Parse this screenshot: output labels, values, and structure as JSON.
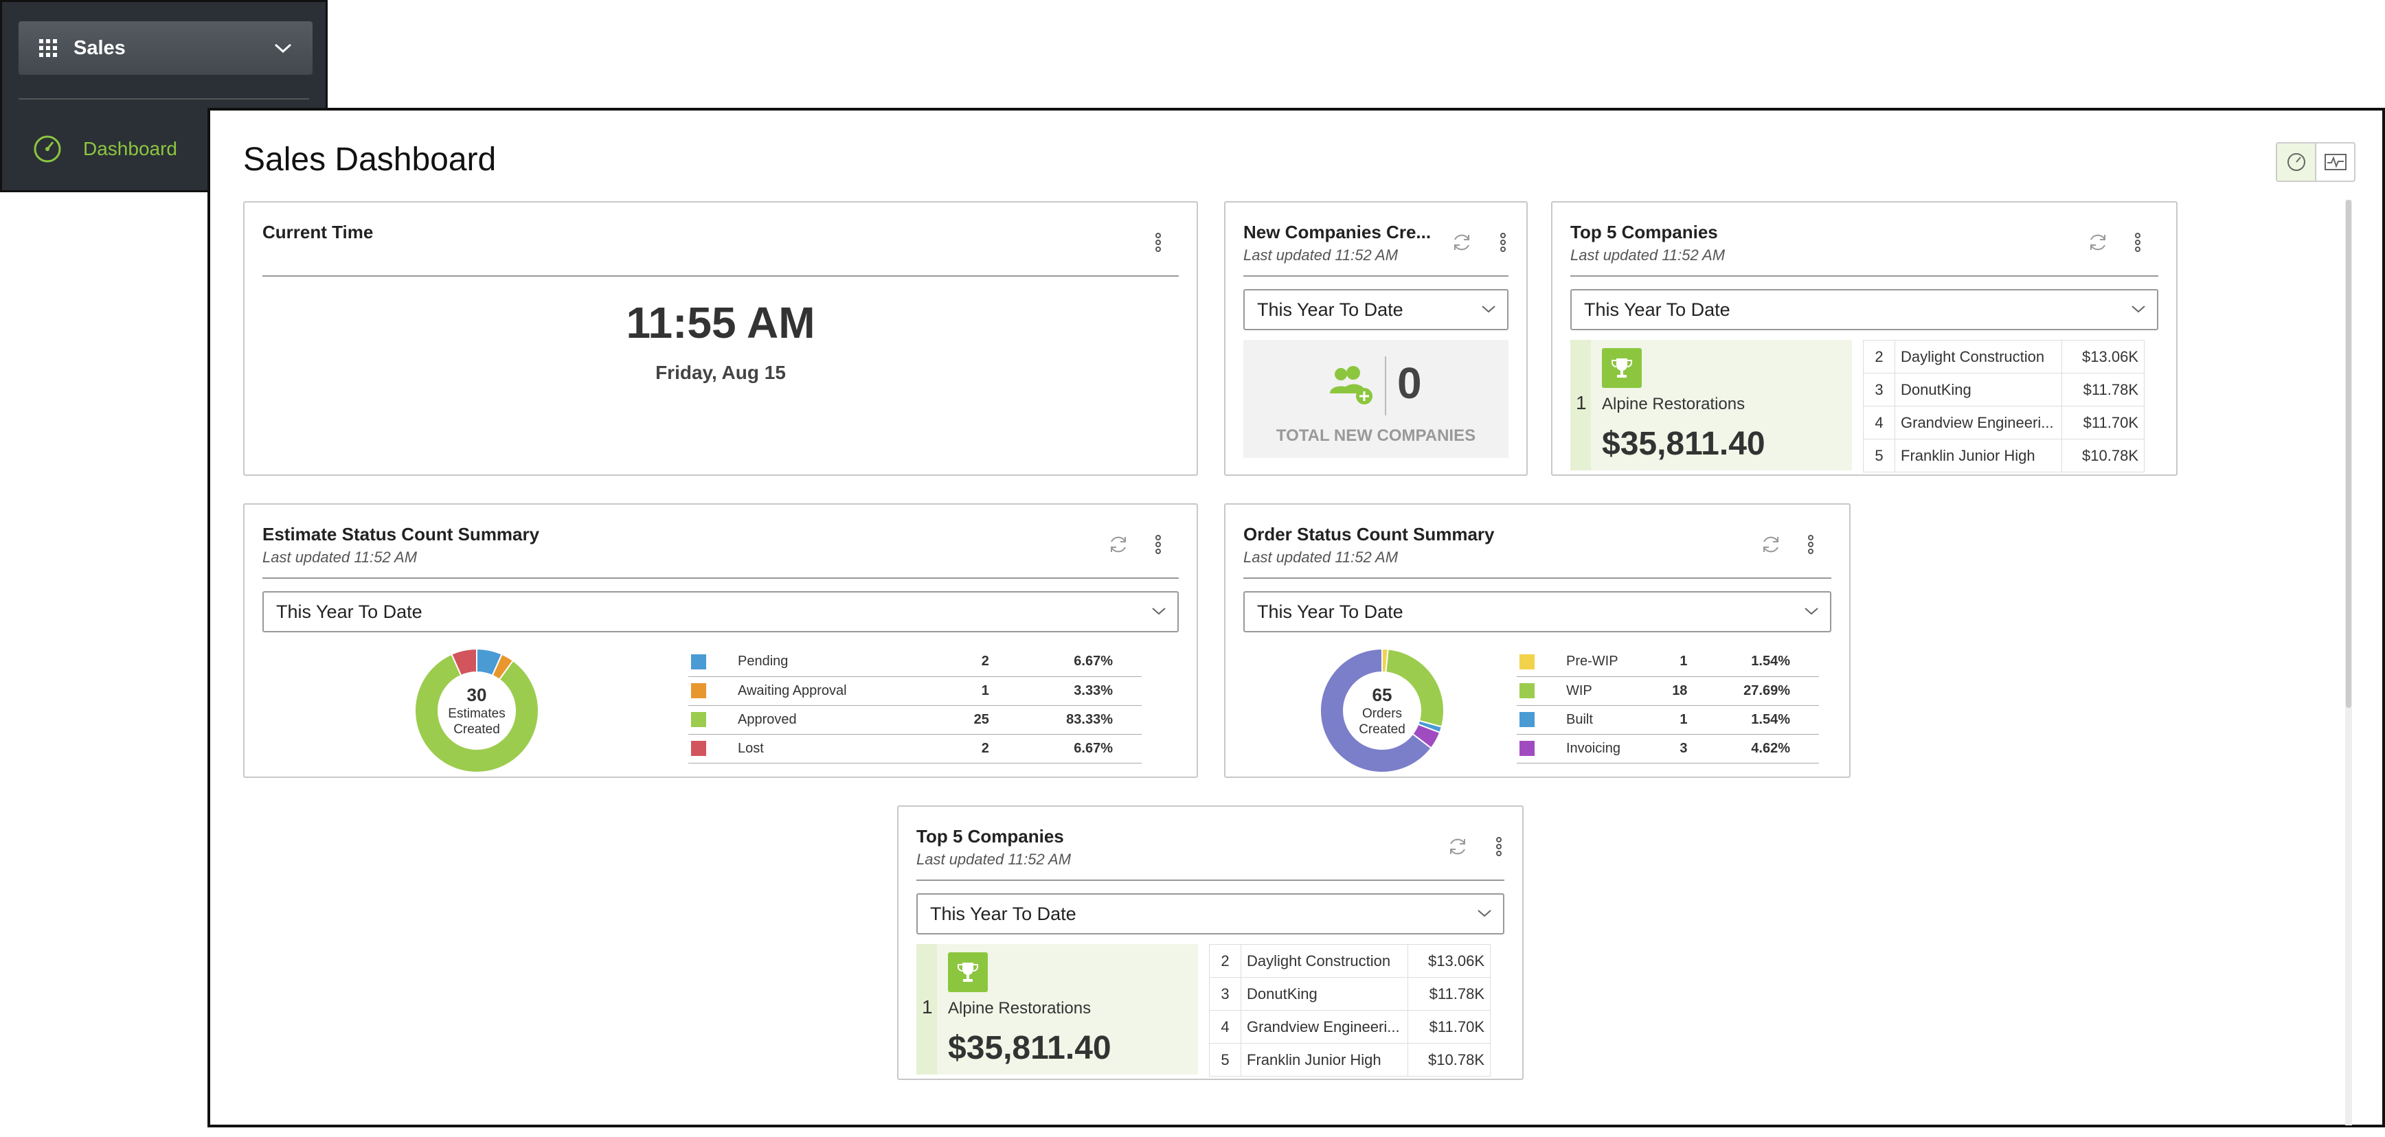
{
  "sidebar": {
    "app_name": "Sales",
    "nav": [
      {
        "label": "Dashboard",
        "icon": "gauge-icon",
        "active": true
      }
    ]
  },
  "page": {
    "title": "Sales Dashboard"
  },
  "colors": {
    "accent_green": "#8cc63f",
    "pending": "#4a9ad4",
    "awaiting": "#e8972e",
    "approved": "#9ccc4e",
    "lost": "#d2545c",
    "prewip": "#f2d24b",
    "wip": "#9ccc4e",
    "built": "#4a9ad4",
    "invoicing": "#a04cc0",
    "orders_main": "#7b7ec9"
  },
  "current_time": {
    "title": "Current Time",
    "time": "11:55 AM",
    "date": "Friday, Aug 15"
  },
  "new_companies": {
    "title": "New Companies Cre...",
    "updated": "Last updated 11:52 AM",
    "filter": "This Year To Date",
    "count": "0",
    "label": "TOTAL NEW COMPANIES"
  },
  "top5": {
    "title": "Top 5 Companies",
    "updated": "Last updated 11:52 AM",
    "filter": "This Year To Date",
    "first": {
      "rank": "1",
      "name": "Alpine Restorations",
      "amount": "$35,811.40"
    },
    "rows": [
      {
        "rank": "2",
        "name": "Daylight Construction",
        "value": "$13.06K"
      },
      {
        "rank": "3",
        "name": "DonutKing",
        "value": "$11.78K"
      },
      {
        "rank": "4",
        "name": "Grandview Engineeri...",
        "value": "$11.70K"
      },
      {
        "rank": "5",
        "name": "Franklin Junior High",
        "value": "$10.78K"
      }
    ]
  },
  "estimates": {
    "title": "Estimate Status Count Summary",
    "updated": "Last updated 11:52 AM",
    "filter": "This Year To Date",
    "center_count": "30",
    "center_label_1": "Estimates",
    "center_label_2": "Created",
    "legend": [
      {
        "label": "Pending",
        "count": "2",
        "pct": "6.67%"
      },
      {
        "label": "Awaiting Approval",
        "count": "1",
        "pct": "3.33%"
      },
      {
        "label": "Approved",
        "count": "25",
        "pct": "83.33%"
      },
      {
        "label": "Lost",
        "count": "2",
        "pct": "6.67%"
      }
    ]
  },
  "orders": {
    "title": "Order Status Count Summary",
    "updated": "Last updated 11:52 AM",
    "filter": "This Year To Date",
    "center_count": "65",
    "center_label_1": "Orders",
    "center_label_2": "Created",
    "legend": [
      {
        "label": "Pre-WIP",
        "count": "1",
        "pct": "1.54%"
      },
      {
        "label": "WIP",
        "count": "18",
        "pct": "27.69%"
      },
      {
        "label": "Built",
        "count": "1",
        "pct": "1.54%"
      },
      {
        "label": "Invoicing",
        "count": "3",
        "pct": "4.62%"
      }
    ]
  },
  "chart_data": [
    {
      "type": "pie",
      "title": "Estimate Status Count Summary",
      "categories": [
        "Pending",
        "Awaiting Approval",
        "Approved",
        "Lost"
      ],
      "values": [
        2,
        1,
        25,
        2
      ],
      "colors": [
        "#4a9ad4",
        "#e8972e",
        "#9ccc4e",
        "#d2545c"
      ]
    },
    {
      "type": "pie",
      "title": "Order Status Count Summary",
      "categories": [
        "Pre-WIP",
        "WIP",
        "Built",
        "Invoicing",
        ""
      ],
      "values": [
        1,
        18,
        1,
        3,
        42
      ],
      "colors": [
        "#f2d24b",
        "#9ccc4e",
        "#4a9ad4",
        "#a04cc0",
        "#7b7ec9"
      ]
    }
  ]
}
